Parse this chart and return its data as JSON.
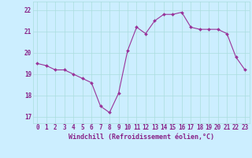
{
  "x": [
    0,
    1,
    2,
    3,
    4,
    5,
    6,
    7,
    8,
    9,
    10,
    11,
    12,
    13,
    14,
    15,
    16,
    17,
    18,
    19,
    20,
    21,
    22,
    23
  ],
  "y": [
    19.5,
    19.4,
    19.2,
    19.2,
    19.0,
    18.8,
    18.6,
    17.5,
    17.2,
    18.1,
    20.1,
    21.2,
    20.9,
    21.5,
    21.8,
    21.8,
    21.9,
    21.2,
    21.1,
    21.1,
    21.1,
    20.9,
    19.8,
    19.2
  ],
  "line_color": "#993399",
  "marker": "D",
  "marker_size": 2.0,
  "bg_color": "#cceeff",
  "grid_color": "#aadddd",
  "xlabel": "Windchill (Refroidissement éolien,°C)",
  "xlabel_fontsize": 6.0,
  "ylabel_ticks": [
    17,
    18,
    19,
    20,
    21,
    22
  ],
  "xlim": [
    -0.5,
    23.5
  ],
  "ylim": [
    16.7,
    22.4
  ],
  "xtick_labels": [
    "0",
    "1",
    "2",
    "3",
    "4",
    "5",
    "6",
    "7",
    "8",
    "9",
    "10",
    "11",
    "12",
    "13",
    "14",
    "15",
    "16",
    "17",
    "18",
    "19",
    "20",
    "21",
    "22",
    "23"
  ],
  "tick_fontsize": 5.5,
  "tick_color": "#882288"
}
